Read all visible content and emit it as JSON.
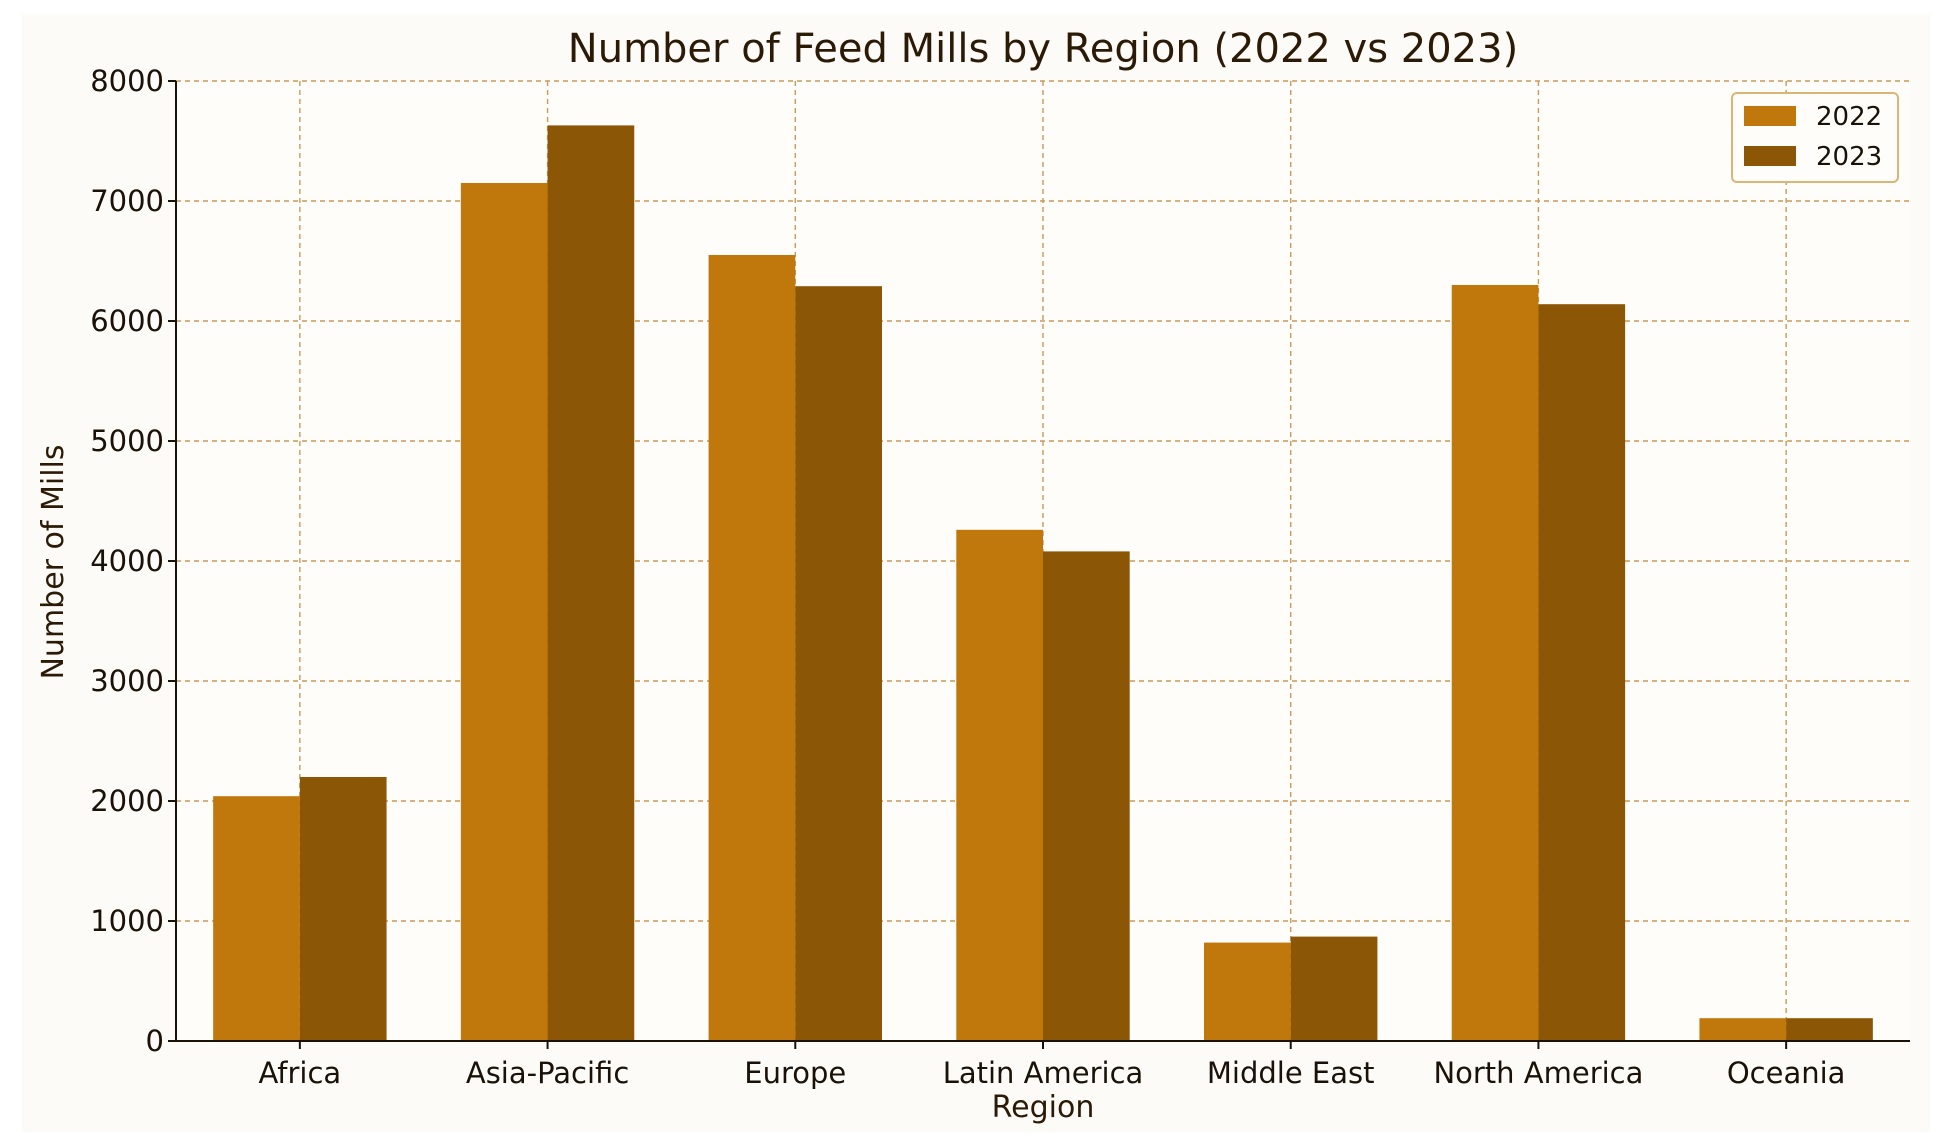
{
  "chart_data": {
    "type": "bar",
    "title": "Number of Feed Mills by Region (2022 vs 2023)",
    "xlabel": "Region",
    "ylabel": "Number of Mills",
    "categories": [
      "Africa",
      "Asia-Pacific",
      "Europe",
      "Latin America",
      "Middle East",
      "North America",
      "Oceania"
    ],
    "series": [
      {
        "name": "2022",
        "values": [
          2040,
          7150,
          6550,
          4260,
          820,
          6300,
          190
        ],
        "color": "#c0770c"
      },
      {
        "name": "2023",
        "values": [
          2200,
          7630,
          6290,
          4080,
          870,
          6140,
          190
        ],
        "color": "#8b5606"
      }
    ],
    "ylim": [
      0,
      8000
    ],
    "yticks": [
      "0",
      "1000",
      "2000",
      "3000",
      "4000",
      "5000",
      "6000",
      "7000",
      "8000"
    ],
    "grid": true,
    "legend_position": "top-right",
    "colors": {
      "plot_background": "#fffdfa",
      "grid": "#c89a5a",
      "axis": "#1a1208"
    }
  }
}
